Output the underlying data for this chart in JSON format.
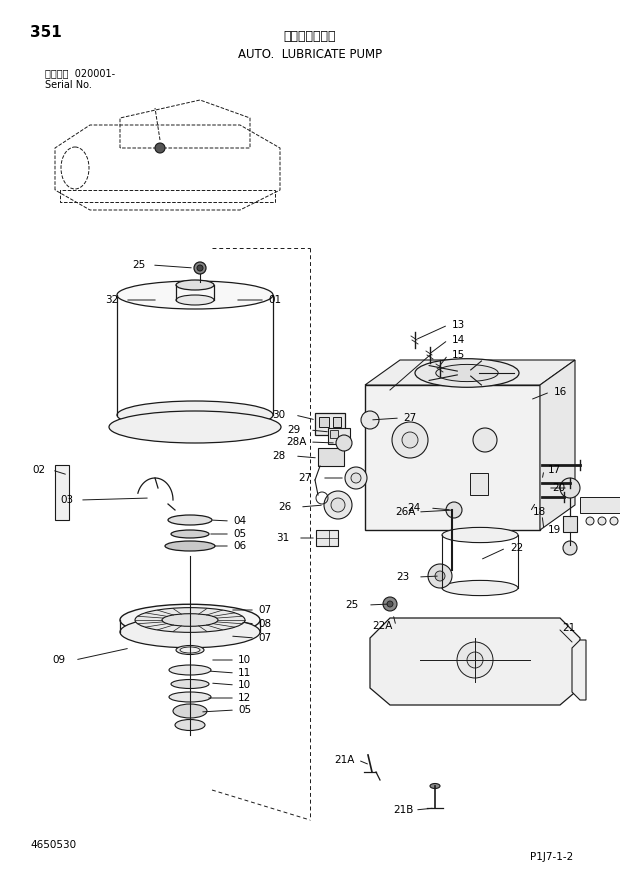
{
  "page_number": "351",
  "title_jp": "自動給脂ポンプ",
  "title_en": "AUTO.  LUBRICATE PUMP",
  "serial_label": "適用号機  020001-",
  "serial_no": "Serial No.",
  "part_number": "4650530",
  "page_ref": "P1J7-1-2",
  "bg_color": "#ffffff",
  "lc": "#1a1a1a",
  "tc": "#000000",
  "fig_width": 6.2,
  "fig_height": 8.73,
  "dpi": 100
}
